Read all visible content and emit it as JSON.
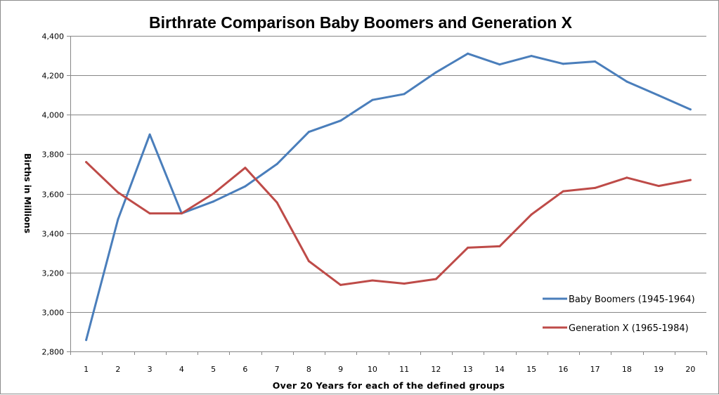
{
  "chart_data": {
    "type": "line",
    "title": "Birthrate Comparison Baby Boomers and Generation X",
    "xlabel": "Over 20 Years for each of the defined groups",
    "ylabel": "Births in Millions",
    "x": [
      1,
      2,
      3,
      4,
      5,
      6,
      7,
      8,
      9,
      10,
      11,
      12,
      13,
      14,
      15,
      16,
      17,
      18,
      19,
      20
    ],
    "ylim": [
      2800,
      4400
    ],
    "yticks": [
      2800,
      3000,
      3200,
      3400,
      3600,
      3800,
      4000,
      4200,
      4400
    ],
    "ytick_labels": [
      "2,800",
      "3,000",
      "3,200",
      "3,400",
      "3,600",
      "3,800",
      "4,000",
      "4,200",
      "4,400"
    ],
    "grid": "horizontal",
    "legend_position": "right",
    "series": [
      {
        "name": "Baby Boomers (1945-1964)",
        "color": "#4a7ebb",
        "values": [
          2858,
          3470,
          3900,
          3500,
          3560,
          3637,
          3750,
          3913,
          3970,
          4075,
          4105,
          4215,
          4310,
          4255,
          4298,
          4258,
          4270,
          4168,
          4098,
          4027
        ]
      },
      {
        "name": "Generation X (1965-1984)",
        "color": "#be4b48",
        "values": [
          3760,
          3606,
          3500,
          3500,
          3600,
          3731,
          3555,
          3258,
          3137,
          3160,
          3144,
          3167,
          3326,
          3333,
          3494,
          3612,
          3629,
          3681,
          3639,
          3669
        ]
      }
    ]
  }
}
